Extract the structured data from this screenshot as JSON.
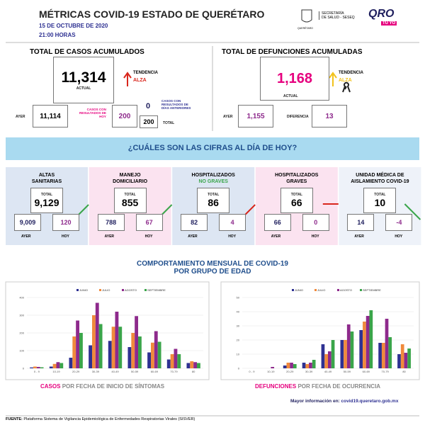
{
  "header": {
    "title": "MÉTRICAS COVID-19 ESTADO DE QUERÉTARO",
    "date": "15 DE OCTUBRE DE 2020",
    "time": "21:00 HORAS",
    "state_label": "QUERÉTARO",
    "agency": [
      "SECRETARÍA",
      "DE SALUD - SESEQ"
    ],
    "brand": "QRO",
    "brand_sub": "TÚ YO"
  },
  "cases": {
    "title": "TOTAL DE CASOS ACUMULADOS",
    "current": "11,314",
    "current_label": "ACTUAL",
    "trend_label": "TENDENCIA",
    "trend": "ALZA",
    "yesterday_label": "AYER",
    "yesterday": "11,114",
    "today_results_label": [
      "CASOS CON",
      "RESULTADOS DE",
      "HOY"
    ],
    "today_results": "200",
    "previous_results": "0",
    "previous_results_label": [
      "CASOS CON",
      "RESULTADOS DE",
      "DÍAS ANTERIORES"
    ],
    "total": "200",
    "total_label": "TOTAL"
  },
  "deaths": {
    "title": "TOTAL DE DEFUNCIONES ACUMULADAS",
    "current": "1,168",
    "current_label": "ACTUAL",
    "trend_label": "TENDENCIA",
    "trend": "ALZA",
    "yesterday_label": "AYER",
    "yesterday": "1,155",
    "difference_label": "DIFERENCIA",
    "difference": "13"
  },
  "banner": "¿CUÁLES SON LAS CIFRAS AL DÍA DE HOY?",
  "card_labels": {
    "total": "TOTAL",
    "yesterday": "AYER",
    "today": "HOY"
  },
  "cards": [
    {
      "title": [
        "ALTAS",
        "SANITARIAS"
      ],
      "total": "9,129",
      "yesterday": "9,009",
      "today": "120"
    },
    {
      "title": [
        "MANEJO",
        "DOMICILIARIO"
      ],
      "total": "855",
      "yesterday": "788",
      "today": "67"
    },
    {
      "title": [
        "HOSPITALIZADOS",
        "NO GRAVES"
      ],
      "total": "86",
      "yesterday": "82",
      "today": "4"
    },
    {
      "title": [
        "HOSPITALIZADOS",
        "GRAVES"
      ],
      "total": "66",
      "yesterday": "66",
      "today": "0"
    },
    {
      "title": [
        "UNIDAD MÉDICA DE",
        "AISLAMIENTO COVID-19"
      ],
      "total": "10",
      "yesterday": "14",
      "today": "-4"
    }
  ],
  "monthly_title": [
    "COMPORTAMIENTO MENSUAL DE COVID-19",
    "POR GRUPO DE EDAD"
  ],
  "chart_data": [
    {
      "type": "bar",
      "categories": [
        "0 - 9",
        "10-19",
        "20-29",
        "30-39",
        "40-49",
        "50-59",
        "60-69",
        "70-79",
        "80"
      ],
      "ylim": [
        0,
        400
      ],
      "yticks": [
        0,
        100,
        200,
        300,
        400
      ],
      "grid": true,
      "series": [
        {
          "name": "JUNIO",
          "color": "#2e3192",
          "values": [
            5,
            10,
            60,
            130,
            155,
            120,
            90,
            50,
            30
          ]
        },
        {
          "name": "JULIO",
          "color": "#f08a3c",
          "values": [
            10,
            25,
            180,
            300,
            235,
            200,
            145,
            80,
            40
          ]
        },
        {
          "name": "AGOSTO",
          "color": "#8e2a8c",
          "values": [
            8,
            35,
            270,
            370,
            320,
            295,
            210,
            110,
            35
          ]
        },
        {
          "name": "SEPTIEMBRE",
          "color": "#3aa54a",
          "values": [
            6,
            30,
            200,
            250,
            235,
            180,
            150,
            80,
            30
          ]
        }
      ],
      "caption": [
        "CASOS",
        "POR FECHA DE INICIO DE SÍNTOMAS"
      ]
    },
    {
      "type": "bar",
      "categories": [
        "0 - 9",
        "10-19",
        "20-29",
        "30-39",
        "40-49",
        "50-59",
        "60-69",
        "70-79",
        "80"
      ],
      "ylim": [
        0,
        50
      ],
      "yticks": [
        0,
        10,
        20,
        30,
        40,
        50
      ],
      "grid": true,
      "series": [
        {
          "name": "JUNIO",
          "color": "#2e3192",
          "values": [
            0,
            0,
            2,
            4,
            17,
            20,
            27,
            18,
            10
          ]
        },
        {
          "name": "JULIO",
          "color": "#f08a3c",
          "values": [
            0,
            0,
            4,
            3,
            10,
            20,
            33,
            18,
            17
          ]
        },
        {
          "name": "AGOSTO",
          "color": "#8e2a8c",
          "values": [
            0,
            1,
            4,
            4,
            12,
            31,
            37,
            35,
            11
          ]
        },
        {
          "name": "SEPTIEMBRE",
          "color": "#3aa54a",
          "values": [
            0,
            0,
            3,
            6,
            20,
            26,
            41,
            22,
            14
          ]
        }
      ],
      "caption": [
        "DEFUNCIONES",
        "POR FECHA DE OCURRENCIA"
      ]
    }
  ],
  "more_info": {
    "label": "Mayor información en:",
    "url": "covid19.queretaro.gob.mx"
  },
  "footer": {
    "label": "FUENTE:",
    "text": "Plataforma Sistema  de Vigilancia Epidemiológica de Enfermedades Respiratorias Virales (SISVER)"
  }
}
